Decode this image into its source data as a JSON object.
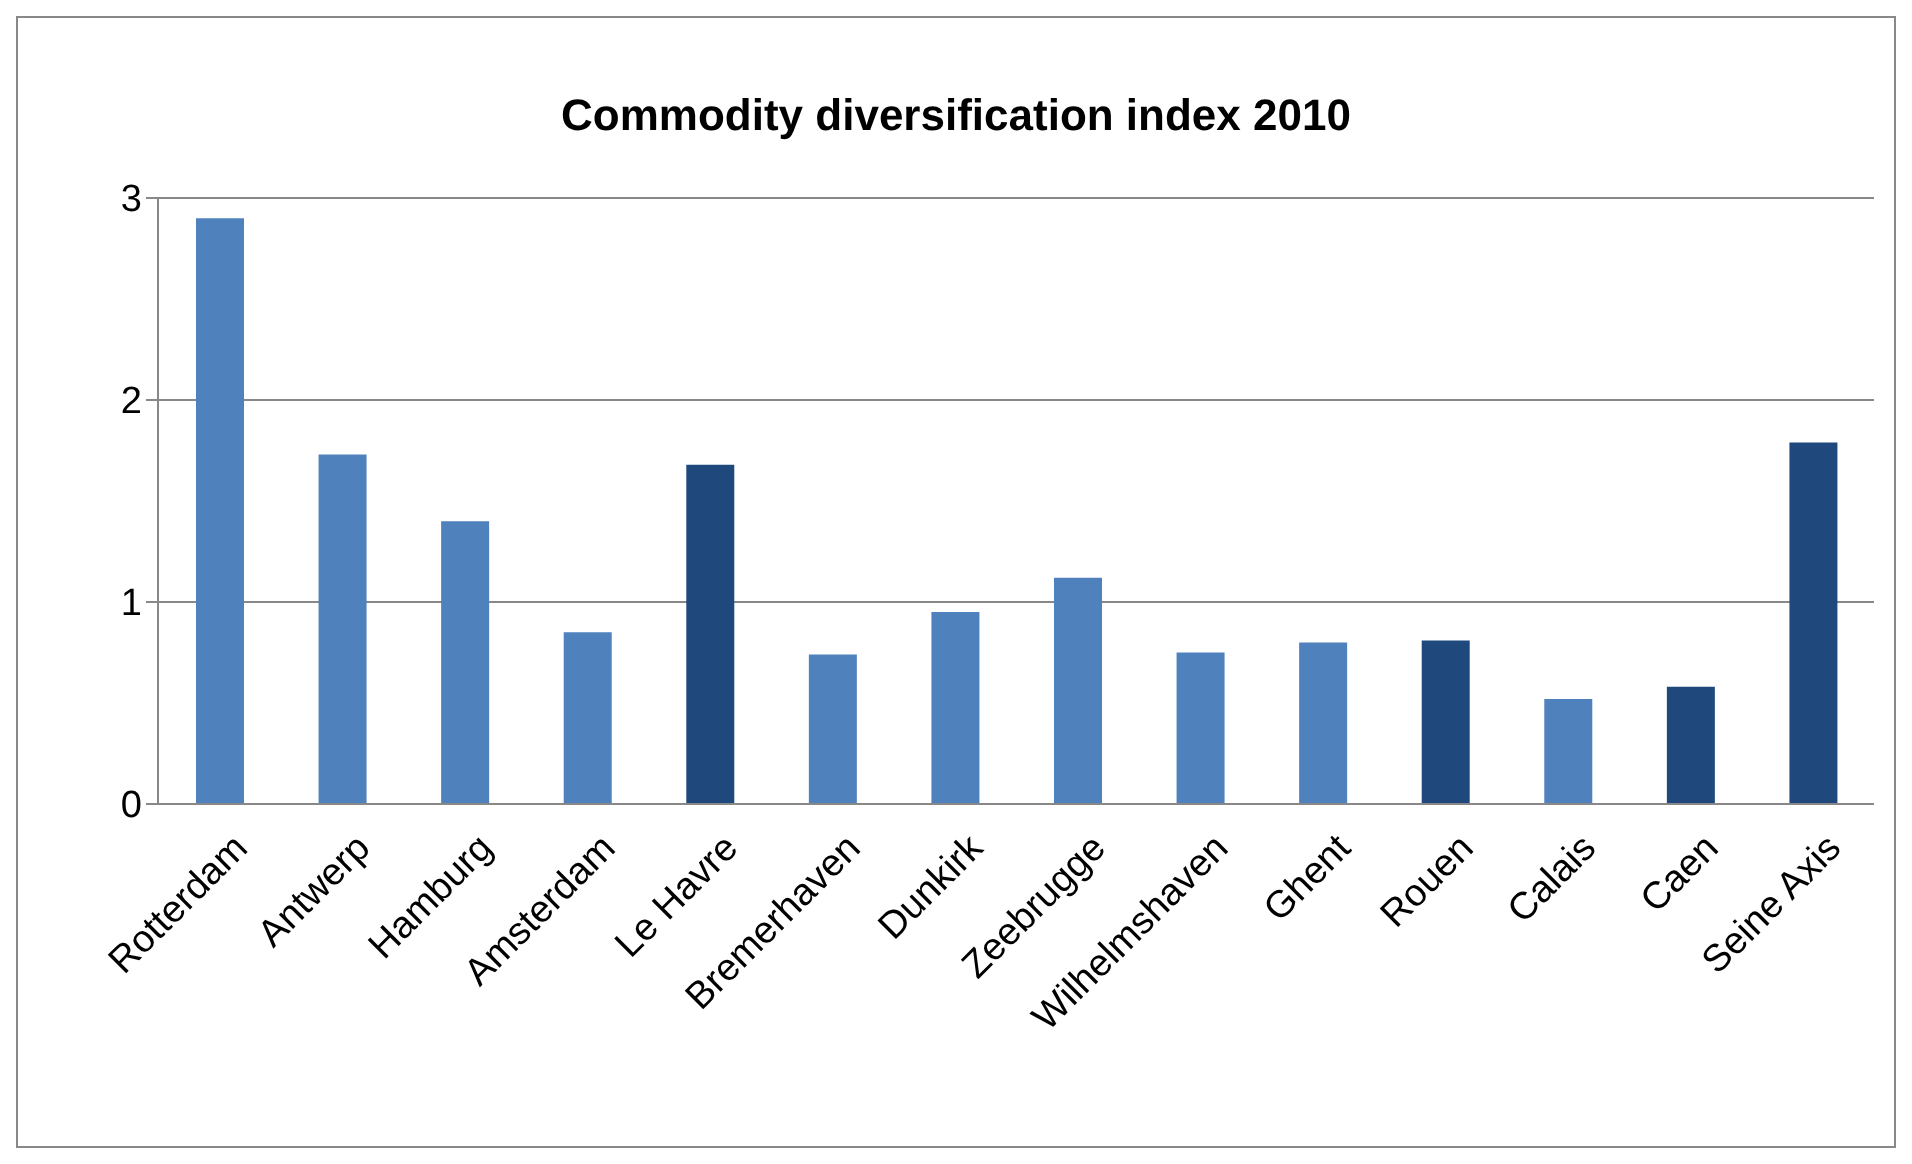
{
  "chart_data": {
    "type": "bar",
    "title": "Commodity diversification index 2010",
    "categories": [
      "Rotterdam",
      "Antwerp",
      "Hamburg",
      "Amsterdam",
      "Le Havre",
      "Bremerhaven",
      "Dunkirk",
      "Zeebrugge",
      "Wilhelmshaven",
      "Ghent",
      "Rouen",
      "Calais",
      "Caen",
      "Seine Axis"
    ],
    "values": [
      2.9,
      1.73,
      1.4,
      0.85,
      1.68,
      0.74,
      0.95,
      1.12,
      0.75,
      0.8,
      0.81,
      0.52,
      0.58,
      1.79
    ],
    "colors": [
      "#4f81bd",
      "#4f81bd",
      "#4f81bd",
      "#4f81bd",
      "#1f497d",
      "#4f81bd",
      "#4f81bd",
      "#4f81bd",
      "#4f81bd",
      "#4f81bd",
      "#1f497d",
      "#4f81bd",
      "#1f497d",
      "#1f497d"
    ],
    "ylim": [
      0,
      3
    ],
    "yticks": [
      0,
      1,
      2,
      3
    ],
    "grid": "y"
  }
}
